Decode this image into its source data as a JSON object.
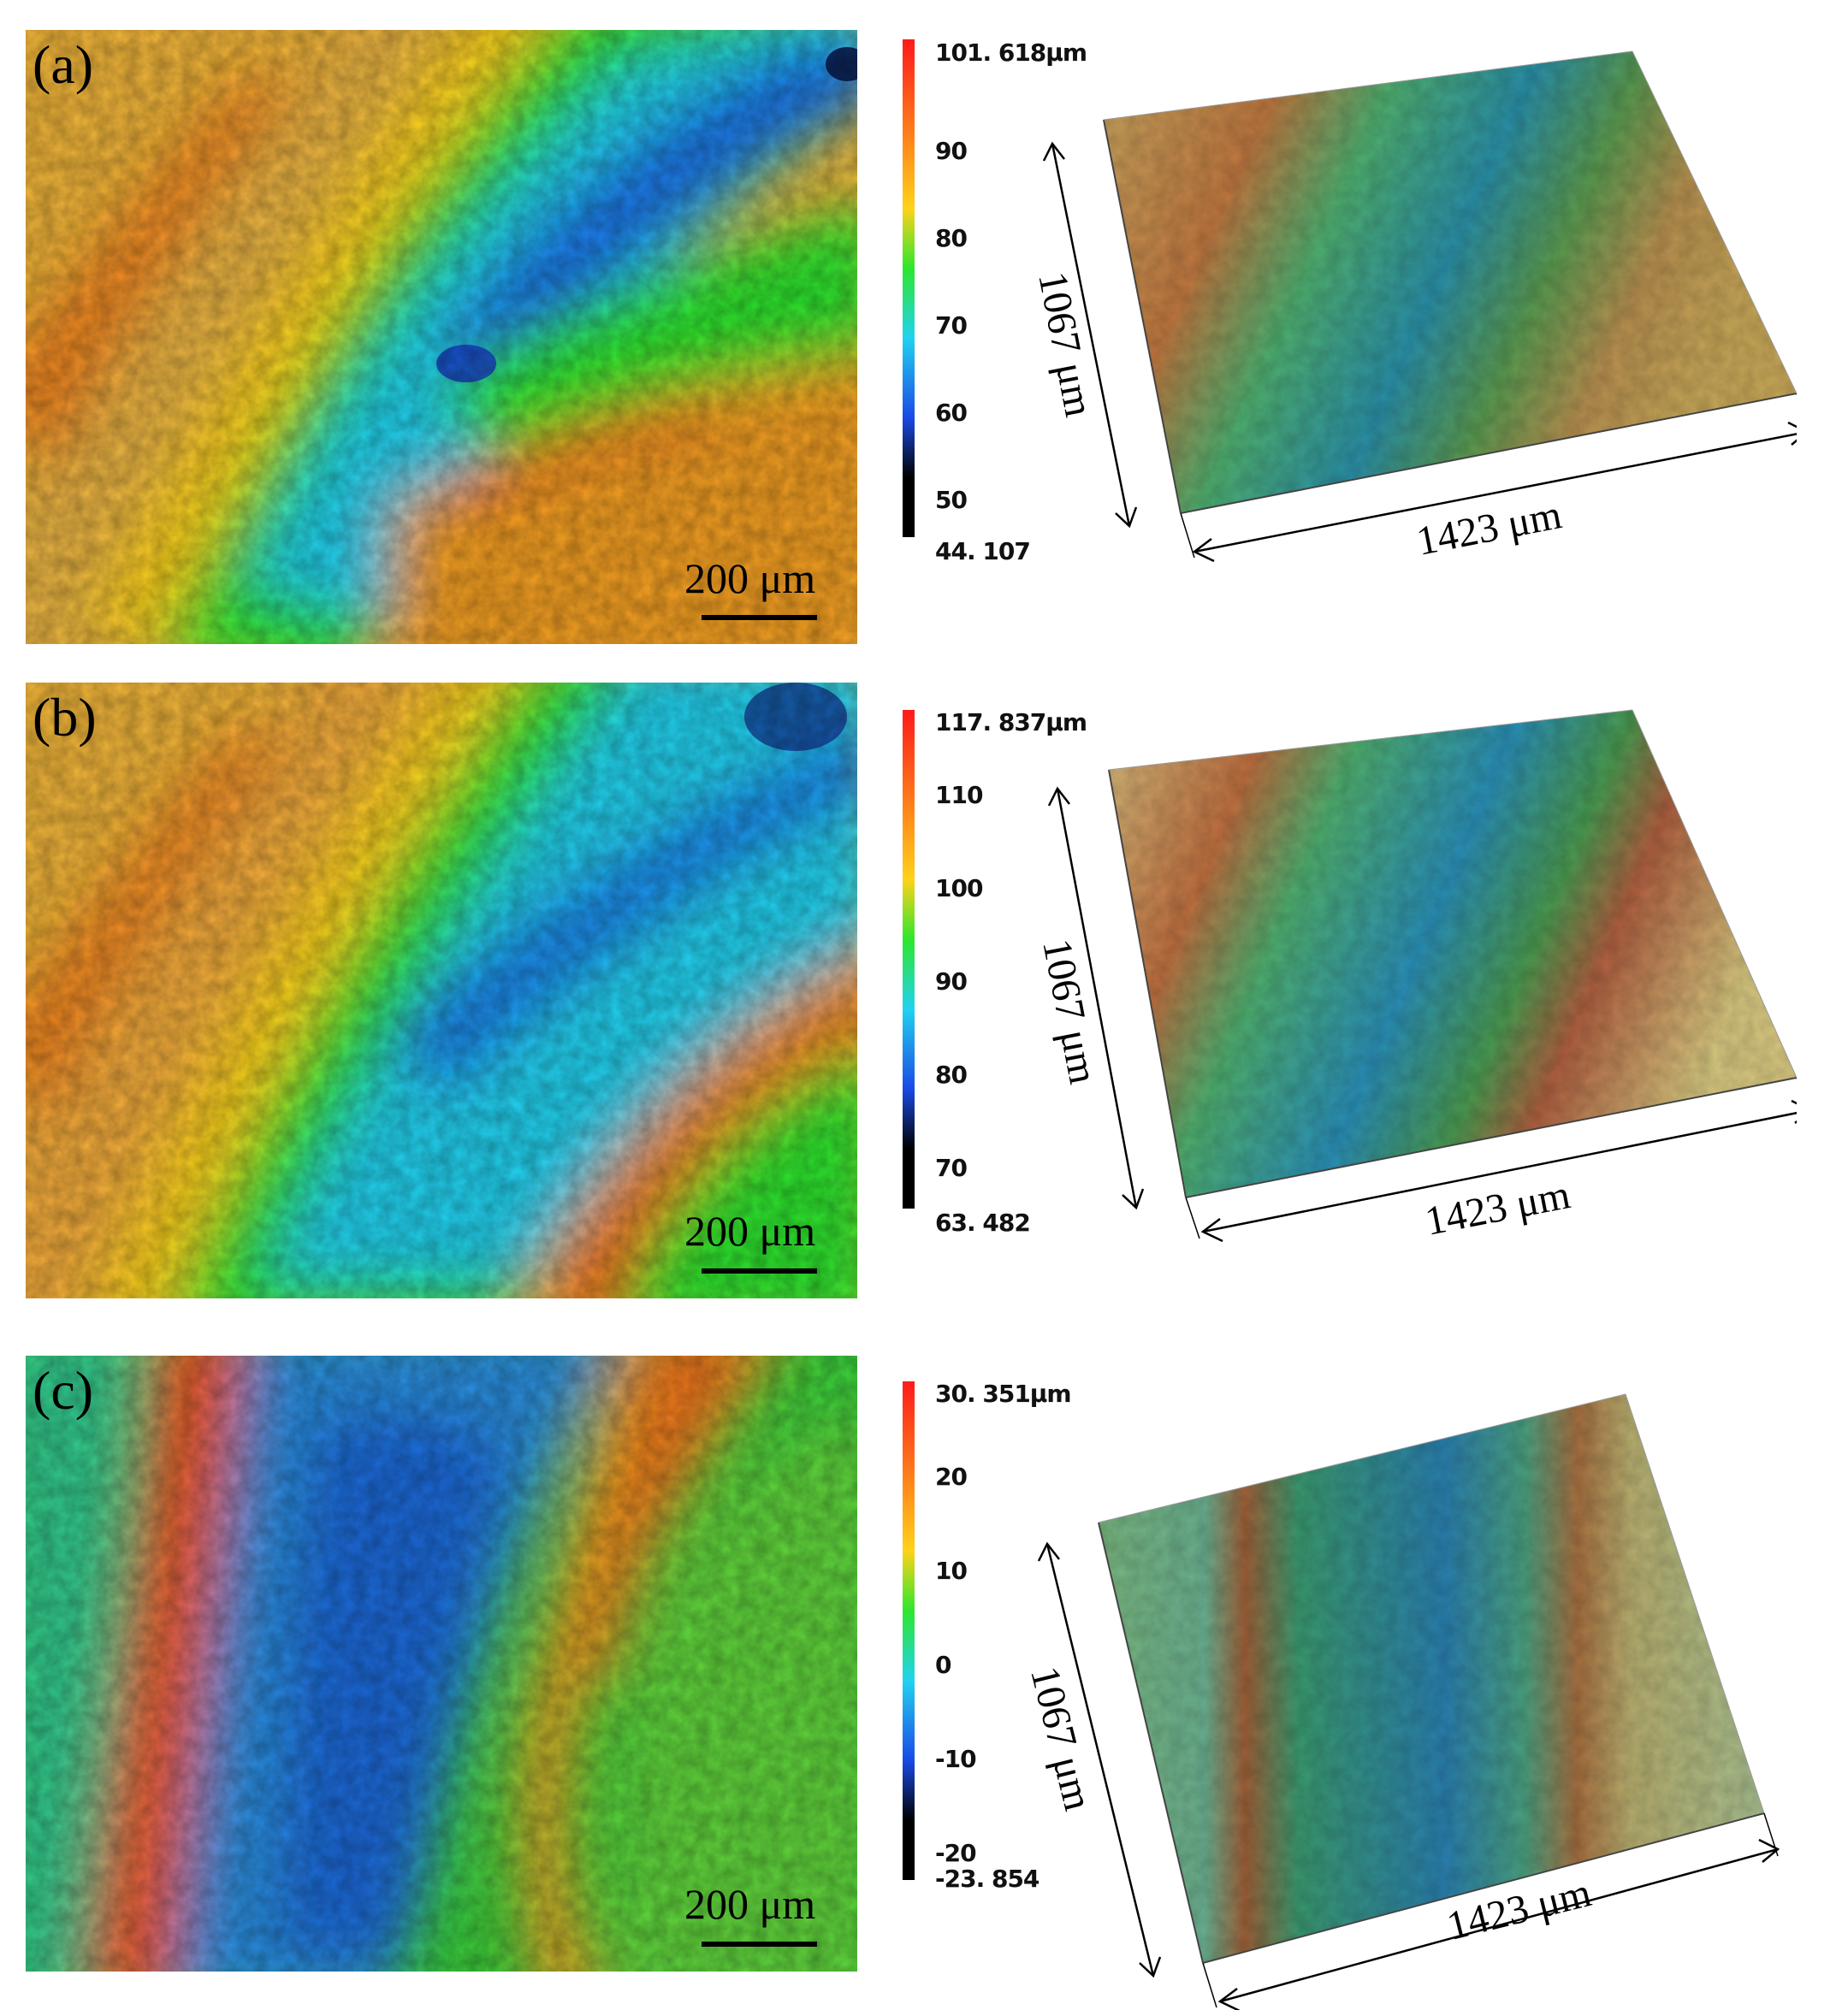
{
  "panels": [
    {
      "label": "(a)",
      "scale_label": "200 μm",
      "colorbar": {
        "max_label": "101. 618μm",
        "ticks": [
          "90",
          "80",
          "70",
          "60",
          "50"
        ],
        "min_label": "44. 107"
      },
      "dims": {
        "width_label": "1423 μm",
        "height_label": "1067 μm"
      }
    },
    {
      "label": "(b)",
      "scale_label": "200 μm",
      "colorbar": {
        "max_label": "117. 837μm",
        "ticks": [
          "110",
          "100",
          "90",
          "80",
          "70"
        ],
        "min_label": "63. 482"
      },
      "dims": {
        "width_label": "1423 μm",
        "height_label": "1067 μm"
      }
    },
    {
      "label": "(c)",
      "scale_label": "200 μm",
      "colorbar": {
        "max_label": "30. 351μm",
        "ticks": [
          "20",
          "10",
          "0",
          "-10",
          "-20"
        ],
        "min_label": "-23. 854"
      },
      "dims": {
        "width_label": "1423 μm",
        "height_label": "1067 μm"
      }
    }
  ],
  "colors": {
    "red": "#e8281e",
    "orange": "#f28a1e",
    "yellow": "#f2d21e",
    "green": "#3cd23c",
    "cyan": "#2ec8e6",
    "blue": "#2a6ee0",
    "black": "#000000"
  }
}
